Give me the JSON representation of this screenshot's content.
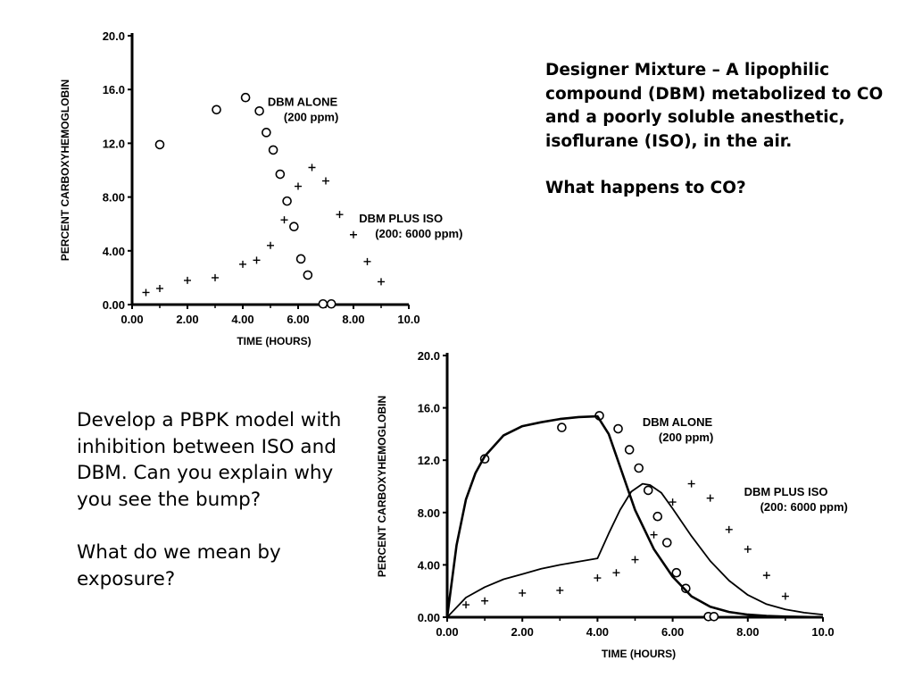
{
  "slide": {
    "right_text": {
      "paragraph_1": "Designer Mixture – A lipophilic compound (DBM) metabolized to CO and a poorly soluble anesthetic, isoflurane (ISO), in the air.",
      "paragraph_2": "What happens to CO?"
    },
    "left_text": {
      "paragraph_1": "Develop a PBPK model with inhibition between ISO and DBM.  Can you explain why you see the bump?",
      "paragraph_2": "What do we mean by exposure?"
    }
  },
  "chart_data": [
    {
      "type": "scatter",
      "title": "",
      "xlabel": "TIME (HOURS)",
      "ylabel": "PERCENT CARBOXYHEMOGLOBIN",
      "xlim": [
        0,
        10
      ],
      "ylim": [
        0,
        20
      ],
      "x_ticks": [
        "0.00",
        "2.00",
        "4.00",
        "6.00",
        "8.00",
        "10.0"
      ],
      "x_minor_ticks": [
        "1.00",
        "3.00",
        "5.00",
        "7.00",
        "9.00"
      ],
      "y_ticks": [
        "0.00",
        "4.00",
        "8.00",
        "12.0",
        "16.0",
        "20.0"
      ],
      "grid": false,
      "annotations": [
        {
          "lines": [
            "DBM ALONE",
            "(200 ppm)"
          ],
          "x": 4.9,
          "y": 14.8
        },
        {
          "lines": [
            "DBM PLUS ISO",
            "(200:  6000 ppm)"
          ],
          "x": 8.2,
          "y": 6.1
        }
      ],
      "series": [
        {
          "name": "DBM ALONE",
          "marker": "circle",
          "x": [
            1.0,
            3.05,
            4.1,
            4.6,
            4.85,
            5.1,
            5.35,
            5.6,
            5.85,
            6.1,
            6.35,
            6.9,
            7.2
          ],
          "y": [
            11.9,
            14.5,
            15.4,
            14.4,
            12.8,
            11.5,
            9.7,
            7.7,
            5.8,
            3.4,
            2.2,
            0.05,
            0.05
          ]
        },
        {
          "name": "DBM PLUS ISO",
          "marker": "plus",
          "x": [
            0.5,
            1.0,
            2.0,
            3.0,
            4.0,
            4.5,
            5.0,
            5.5,
            6.0,
            6.5,
            7.0,
            7.5,
            8.0,
            8.5,
            9.0
          ],
          "y": [
            0.9,
            1.2,
            1.8,
            2.0,
            3.0,
            3.3,
            4.4,
            6.3,
            8.8,
            10.2,
            9.2,
            6.7,
            5.2,
            3.2,
            1.7
          ]
        }
      ]
    },
    {
      "type": "line",
      "title": "",
      "xlabel": "TIME (HOURS)",
      "ylabel": "PERCENT CARBOXYHEMOGLOBIN",
      "xlim": [
        0,
        10
      ],
      "ylim": [
        0,
        20
      ],
      "x_ticks": [
        "0.00",
        "2.00",
        "4.00",
        "6.00",
        "8.00",
        "10.0"
      ],
      "x_minor_ticks": [
        "1.00",
        "3.00",
        "5.00",
        "7.00",
        "9.00"
      ],
      "y_ticks": [
        "0.00",
        "4.00",
        "8.00",
        "12.0",
        "16.0",
        "20.0"
      ],
      "grid": false,
      "annotations": [
        {
          "lines": [
            "DBM ALONE",
            "(200 ppm)"
          ],
          "x": 5.2,
          "y": 14.6
        },
        {
          "lines": [
            "DBM PLUS ISO",
            "(200:  6000 ppm)"
          ],
          "x": 7.9,
          "y": 9.3
        }
      ],
      "series": [
        {
          "name": "DBM ALONE",
          "marker": "circle",
          "x": [
            1.0,
            3.05,
            4.05,
            4.55,
            4.85,
            5.1,
            5.35,
            5.6,
            5.85,
            6.1,
            6.35,
            6.95,
            7.1
          ],
          "y": [
            12.1,
            14.5,
            15.4,
            14.4,
            12.8,
            11.4,
            9.7,
            7.7,
            5.7,
            3.4,
            2.2,
            0.05,
            0.05
          ]
        },
        {
          "name": "DBM PLUS ISO",
          "marker": "plus",
          "x": [
            0.5,
            1.0,
            2.0,
            3.0,
            4.0,
            4.5,
            5.0,
            5.5,
            6.0,
            6.5,
            7.0,
            7.5,
            8.0,
            8.5,
            9.0
          ],
          "y": [
            0.95,
            1.25,
            1.85,
            2.05,
            3.0,
            3.4,
            4.4,
            6.3,
            8.8,
            10.2,
            9.1,
            6.7,
            5.2,
            3.2,
            1.6
          ]
        },
        {
          "name": "DBM ALONE",
          "type": "line",
          "x": [
            0.0,
            0.25,
            0.5,
            0.75,
            1.0,
            1.5,
            2.0,
            2.5,
            3.0,
            3.5,
            4.0,
            4.3,
            4.6,
            5.0,
            5.5,
            6.0,
            6.5,
            7.0,
            7.5,
            8.0,
            8.5,
            9.0,
            10.0
          ],
          "y": [
            0.0,
            5.5,
            9.0,
            11.0,
            12.3,
            13.9,
            14.6,
            14.9,
            15.15,
            15.3,
            15.35,
            14.0,
            11.5,
            8.2,
            5.2,
            3.1,
            1.6,
            0.8,
            0.4,
            0.2,
            0.1,
            0.05,
            0.0
          ]
        },
        {
          "name": "DBM PLUS ISO",
          "type": "line",
          "x": [
            0.0,
            0.5,
            1.0,
            1.5,
            2.0,
            2.5,
            3.0,
            3.5,
            4.0,
            4.3,
            4.6,
            4.9,
            5.2,
            5.4,
            5.7,
            6.0,
            6.5,
            7.0,
            7.5,
            8.0,
            8.5,
            9.0,
            9.5,
            10.0
          ],
          "y": [
            0.0,
            1.5,
            2.3,
            2.9,
            3.3,
            3.7,
            4.0,
            4.25,
            4.5,
            6.4,
            8.2,
            9.6,
            10.2,
            10.1,
            9.5,
            8.3,
            6.2,
            4.3,
            2.8,
            1.7,
            1.0,
            0.6,
            0.35,
            0.2
          ]
        }
      ]
    }
  ]
}
